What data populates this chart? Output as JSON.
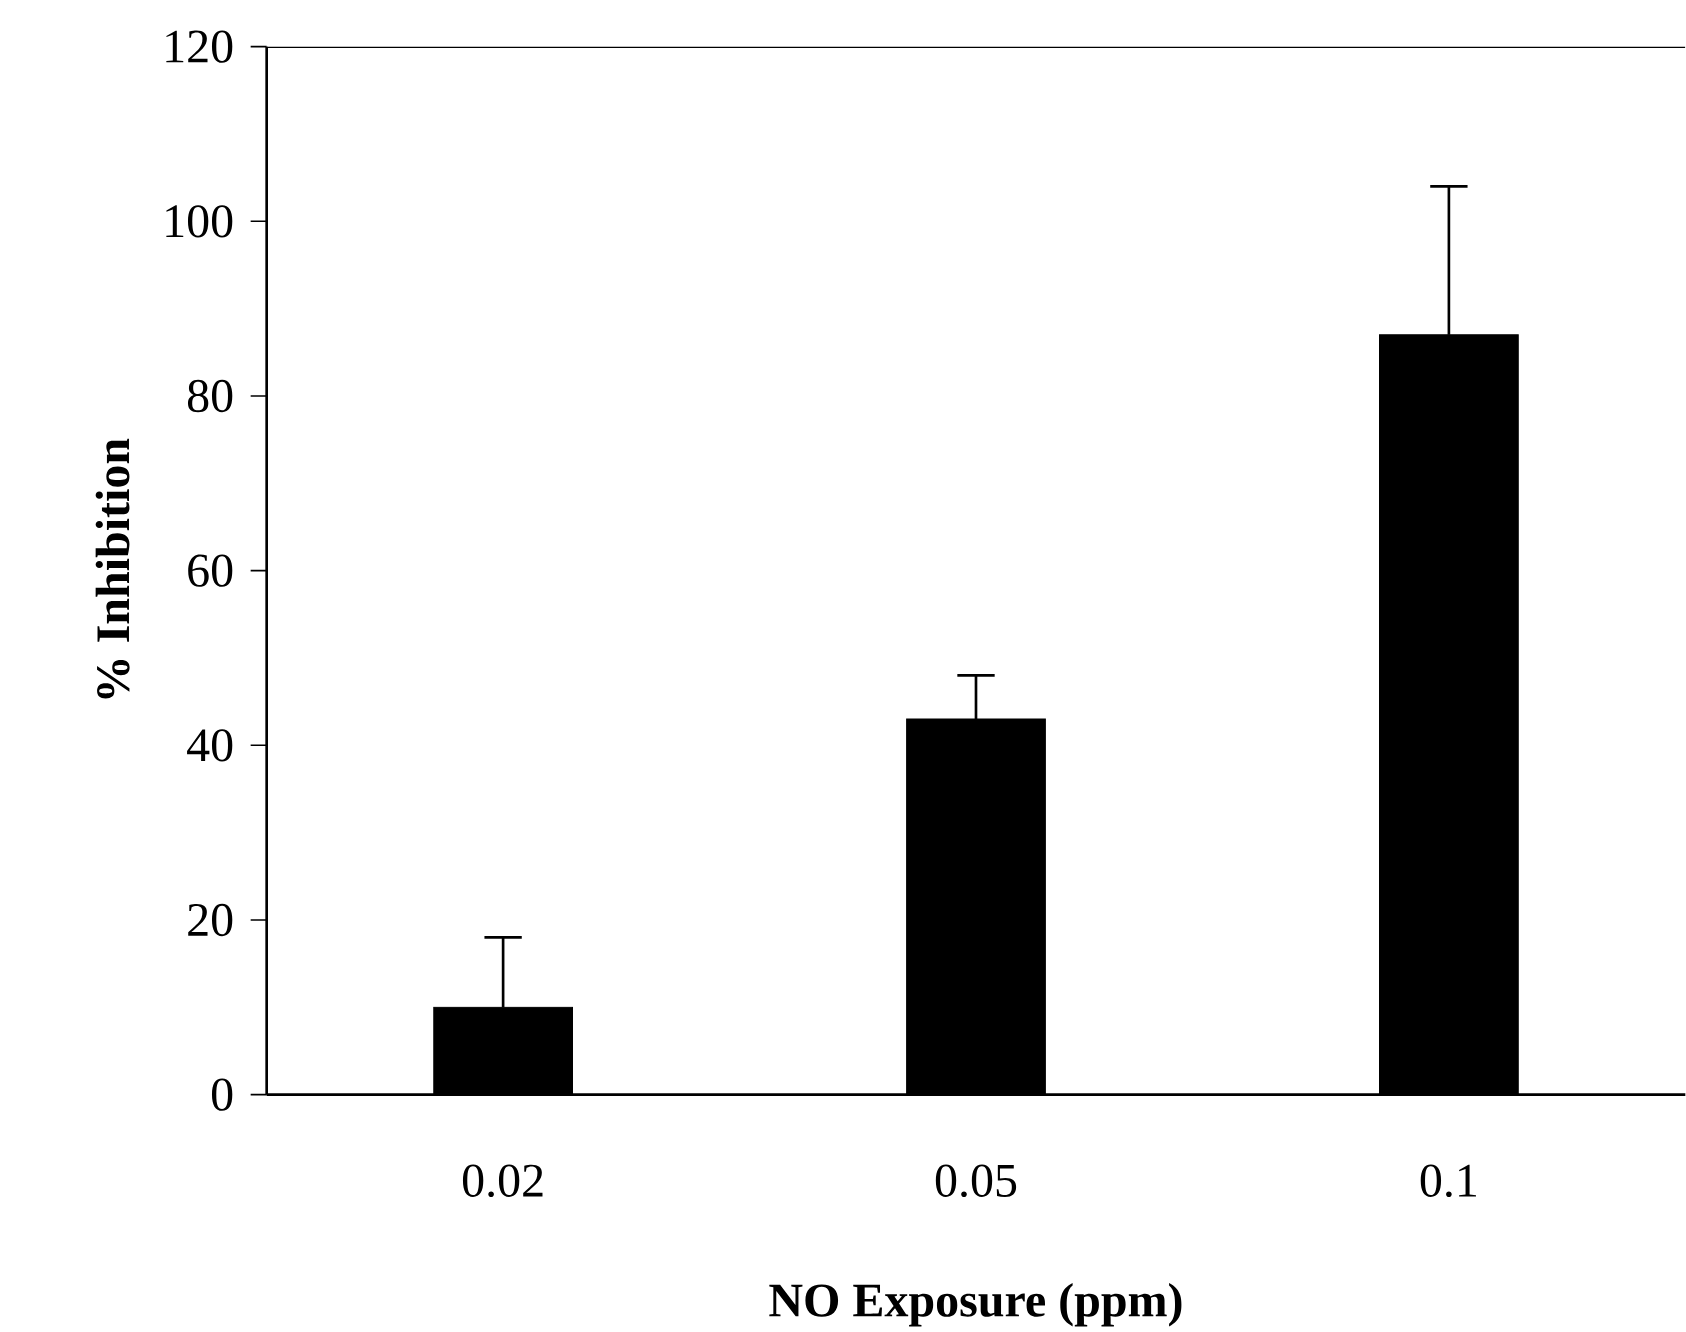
{
  "chart_data": {
    "type": "bar",
    "xlabel": "NO Exposure (ppm)",
    "ylabel": "% Inhibition",
    "categories": [
      "0.02",
      "0.05",
      "0.1"
    ],
    "values": [
      10,
      43,
      87
    ],
    "errors": [
      [
        10,
        18
      ],
      [
        43,
        48
      ],
      [
        87,
        104
      ]
    ],
    "color": "#000000",
    "ylim": [
      0,
      120
    ],
    "yticks": [
      0,
      20,
      40,
      60,
      80,
      100,
      120
    ]
  }
}
